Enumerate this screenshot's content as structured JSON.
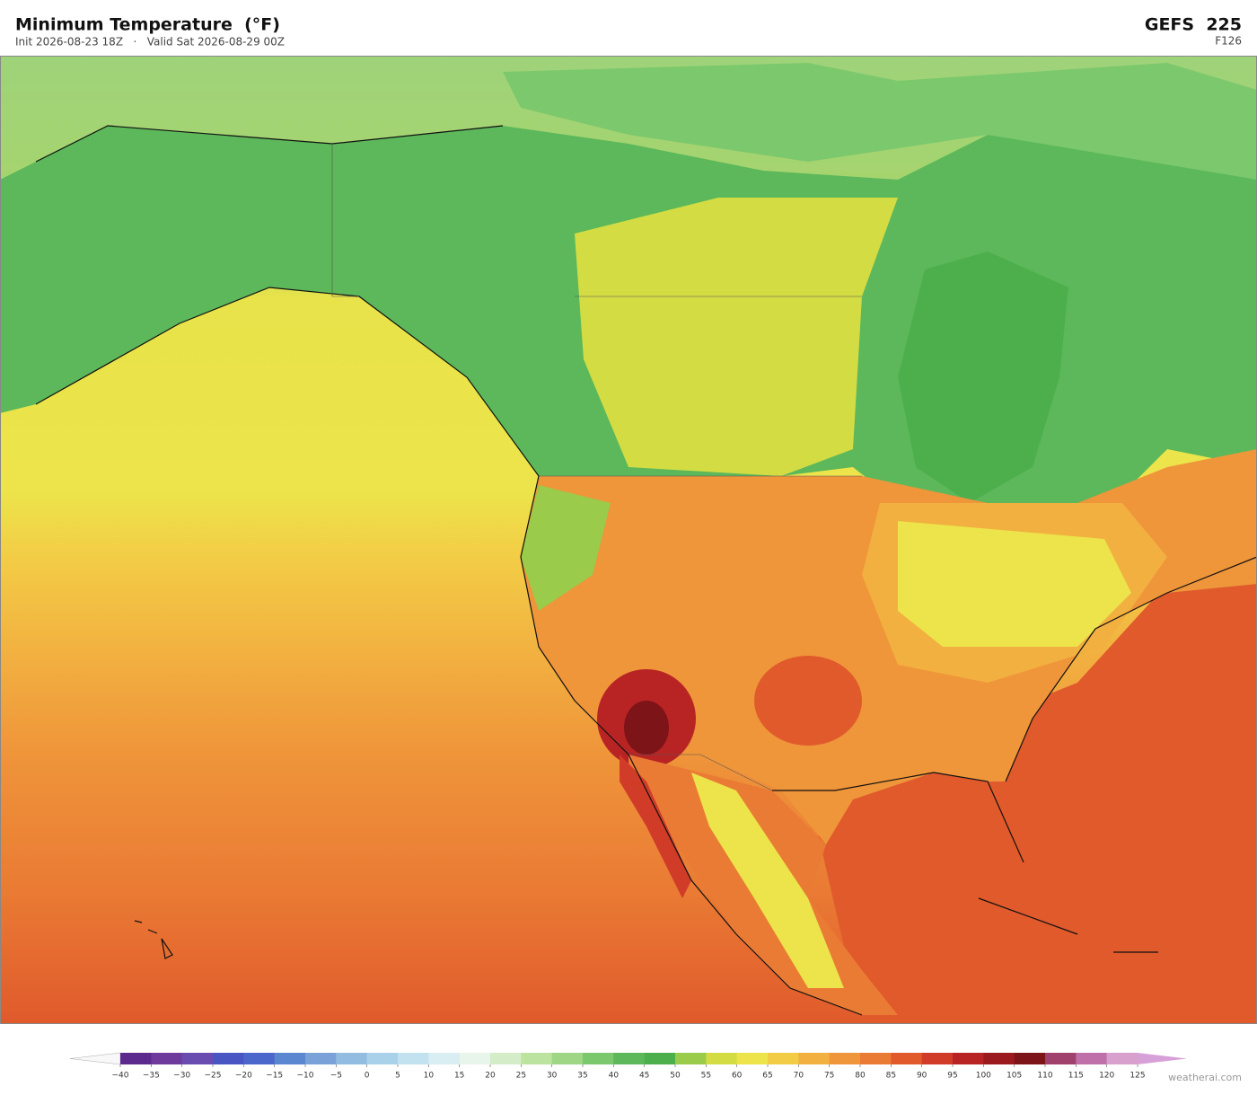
{
  "header": {
    "title": "Minimum Temperature  (°F)",
    "subtitle": "Init 2026-08-23 18Z   ·   Valid Sat 2026-08-29 00Z",
    "model": "GEFS  225",
    "forecast_hour": "F126"
  },
  "colorbar": {
    "ticks": [
      {
        "value": -40,
        "label": "−40"
      },
      {
        "value": -35,
        "label": "−35"
      },
      {
        "value": -30,
        "label": "−30"
      },
      {
        "value": -25,
        "label": "−25"
      },
      {
        "value": -20,
        "label": "−20"
      },
      {
        "value": -15,
        "label": "−15"
      },
      {
        "value": -10,
        "label": "−10"
      },
      {
        "value": -5,
        "label": "−5"
      },
      0,
      5,
      10,
      15,
      20,
      25,
      30,
      35,
      40,
      45,
      50,
      55,
      60,
      65,
      70,
      75,
      80,
      85,
      90,
      95,
      100,
      105,
      110,
      115,
      120,
      125
    ],
    "colors": [
      "#5b2a8c",
      "#6e3b9c",
      "#6a4cb0",
      "#4a55c4",
      "#4b67cc",
      "#5b86d0",
      "#7aa2d8",
      "#92bde0",
      "#a9d2ea",
      "#c2e2f0",
      "#d8eef2",
      "#e8f5ea",
      "#d4ecc8",
      "#bde3a0",
      "#9ed686",
      "#7cc86c",
      "#5cb85a",
      "#4caf4c",
      "#9acb4a",
      "#d4dc44",
      "#ece44a",
      "#f3cc46",
      "#f2b040",
      "#ef953a",
      "#ea7b34",
      "#e05a2c",
      "#d03c28",
      "#b82424",
      "#9a1a1e",
      "#7c1418",
      "#a0406c",
      "#c070a8",
      "#d8a0cc"
    ],
    "under_color": "#f8f8f8",
    "over_color": "#d8a0d8"
  },
  "watermark": "weatherai.com"
}
